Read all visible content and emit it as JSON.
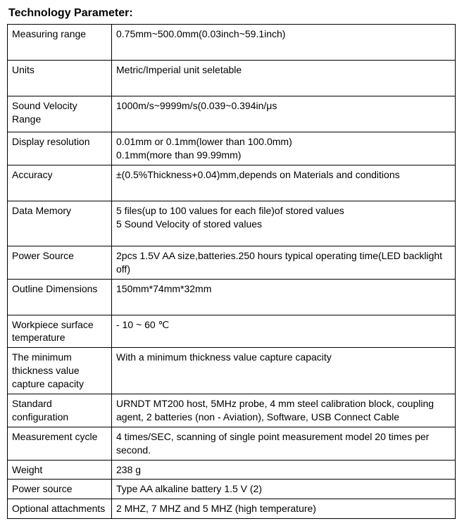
{
  "title": "Technology Parameter:",
  "table": {
    "col1_width": 148,
    "col2_width": 488,
    "border_color": "#000000",
    "font_size": 14,
    "rows": [
      {
        "label": "Measuring range",
        "value": "0.75mm~500.0mm(0.03inch~59.1inch)",
        "height_class": "tall"
      },
      {
        "label": "Units",
        "value": "Metric/Imperial unit seletable",
        "height_class": "tall"
      },
      {
        "label": "Sound Velocity Range",
        "value": "1000m/s~9999m/s(0.039~0.394in/μs",
        "height_class": "tall"
      },
      {
        "label": "Display resolution",
        "value": "0.01mm or 0.1mm(lower than 100.0mm)\n0.1mm(more than 99.99mm)",
        "height_class": ""
      },
      {
        "label": "Accuracy",
        "value": "±(0.5%Thickness+0.04)mm,depends on Materials and conditions",
        "height_class": "tall"
      },
      {
        "label": "Data Memory",
        "value": "5 files(up to 100 values for each file)of stored values\n5 Sound Velocity of stored values",
        "height_class": "taller"
      },
      {
        "label": "Power Source",
        "value": "2pcs 1.5V AA size,batteries.250 hours typical operating time(LED backlight off)",
        "height_class": ""
      },
      {
        "label": "Outline Dimensions",
        "value": "150mm*74mm*32mm",
        "height_class": "tall"
      },
      {
        "label": "Workpiece surface temperature",
        "value": "- 10 ~ 60 ℃",
        "height_class": ""
      },
      {
        "label": "The minimum thickness value capture capacity",
        "value": "With a minimum thickness value capture capacity",
        "height_class": ""
      },
      {
        "label": "Standard configuration",
        "value": "URNDT MT200 host, 5MHz probe, 4 mm steel calibration block, coupling agent, 2 batteries (non - Aviation), Software, USB Connect Cable",
        "height_class": ""
      },
      {
        "label": "Measurement cycle",
        "value": "4 times/SEC, scanning of single point measurement model 20 times per second.",
        "height_class": ""
      },
      {
        "label": "Weight",
        "value": "238 g",
        "height_class": ""
      },
      {
        "label": "Power source",
        "value": "Type AA alkaline battery 1.5 V (2)",
        "height_class": ""
      },
      {
        "label": "Optional attachments",
        "value": "2 MHZ, 7 MHZ and 5 MHZ (high temperature)",
        "height_class": ""
      }
    ]
  }
}
